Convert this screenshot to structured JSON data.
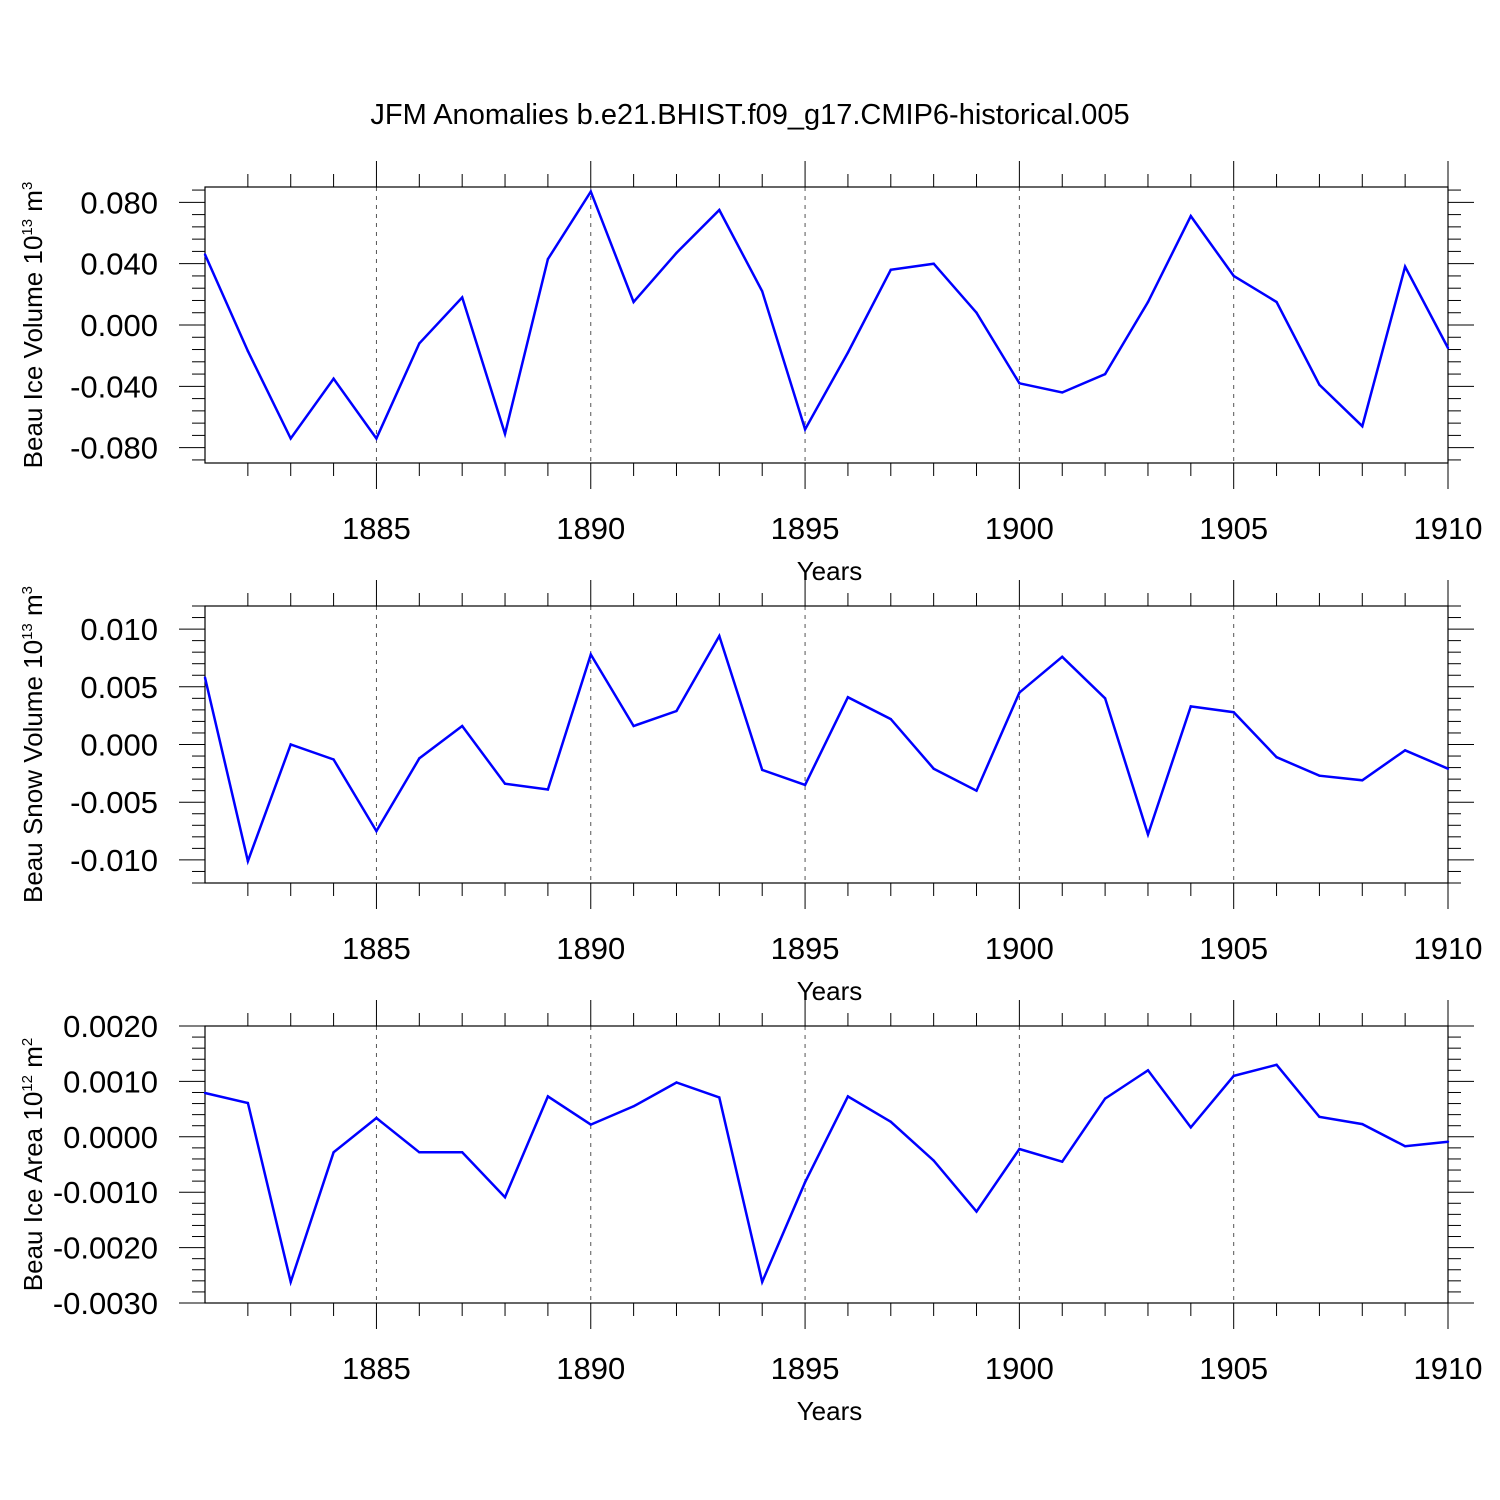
{
  "title": "JFM Anomalies b.e21.BHIST.f09_g17.CMIP6-historical.005",
  "colors": {
    "series": "#0000ff",
    "axes": "#000000",
    "grid": "#555555"
  },
  "chart_data": [
    {
      "type": "line",
      "ylabel": {
        "base": "Beau Ice Volume 10",
        "exponent": "13",
        "unit": " m",
        "unit_exponent": "3"
      },
      "xlabel": "Years",
      "xlim": [
        1881,
        1910
      ],
      "ylim": [
        -0.09,
        0.09
      ],
      "x_ticks": [
        1885,
        1890,
        1895,
        1900,
        1905,
        1910
      ],
      "y_ticks": [
        -0.08,
        -0.04,
        0.0,
        0.04,
        0.08
      ],
      "y_tick_labels": [
        "-0.080",
        "-0.040",
        "0.000",
        "0.040",
        "0.080"
      ],
      "grid": "vertical dashed at major x ticks",
      "x": [
        1881,
        1882,
        1883,
        1884,
        1885,
        1886,
        1887,
        1888,
        1889,
        1890,
        1891,
        1892,
        1893,
        1894,
        1895,
        1896,
        1897,
        1898,
        1899,
        1900,
        1901,
        1902,
        1903,
        1904,
        1905,
        1906,
        1907,
        1908,
        1909,
        1910
      ],
      "series": [
        {
          "name": "Beau Ice Volume",
          "values": [
            0.046,
            -0.017,
            -0.074,
            -0.035,
            -0.074,
            -0.012,
            0.018,
            -0.071,
            0.043,
            0.087,
            0.015,
            0.047,
            0.075,
            0.022,
            -0.068,
            -0.018,
            0.036,
            0.04,
            0.008,
            -0.038,
            -0.044,
            -0.032,
            0.015,
            0.071,
            0.032,
            0.015,
            -0.039,
            -0.066,
            0.038,
            -0.015
          ]
        }
      ]
    },
    {
      "type": "line",
      "ylabel": {
        "base": "Beau Snow Volume 10",
        "exponent": "13",
        "unit": " m",
        "unit_exponent": "3"
      },
      "xlabel": "Years",
      "xlim": [
        1881,
        1910
      ],
      "ylim": [
        -0.012,
        0.012
      ],
      "x_ticks": [
        1885,
        1890,
        1895,
        1900,
        1905,
        1910
      ],
      "y_ticks": [
        -0.01,
        -0.005,
        0.0,
        0.005,
        0.01
      ],
      "y_tick_labels": [
        "-0.010",
        "-0.005",
        "0.000",
        "0.005",
        "0.010"
      ],
      "grid": "vertical dashed at major x ticks",
      "x": [
        1881,
        1882,
        1883,
        1884,
        1885,
        1886,
        1887,
        1888,
        1889,
        1890,
        1891,
        1892,
        1893,
        1894,
        1895,
        1896,
        1897,
        1898,
        1899,
        1900,
        1901,
        1902,
        1903,
        1904,
        1905,
        1906,
        1907,
        1908,
        1909,
        1910
      ],
      "series": [
        {
          "name": "Beau Snow Volume",
          "values": [
            0.0058,
            -0.0101,
            0.0,
            -0.0013,
            -0.0075,
            -0.0012,
            0.0016,
            -0.0034,
            -0.0039,
            0.0078,
            0.0016,
            0.0029,
            0.0094,
            -0.0022,
            -0.0035,
            0.0041,
            0.0022,
            -0.0021,
            -0.004,
            0.0045,
            0.0076,
            0.004,
            -0.0078,
            0.0033,
            0.0028,
            -0.0011,
            -0.0027,
            -0.0031,
            -0.0005,
            -0.0021
          ]
        }
      ]
    },
    {
      "type": "line",
      "ylabel": {
        "base": "Beau Ice Area 10",
        "exponent": "12",
        "unit": " m",
        "unit_exponent": "2"
      },
      "xlabel": "Years",
      "xlim": [
        1881,
        1910
      ],
      "ylim": [
        -0.003,
        0.002
      ],
      "x_ticks": [
        1885,
        1890,
        1895,
        1900,
        1905,
        1910
      ],
      "y_ticks": [
        -0.003,
        -0.002,
        -0.001,
        0.0,
        0.001,
        0.002
      ],
      "y_tick_labels": [
        "-0.0030",
        "-0.0020",
        "-0.0010",
        "0.0000",
        "0.0010",
        "0.0020"
      ],
      "grid": "vertical dashed at major x ticks",
      "x": [
        1881,
        1882,
        1883,
        1884,
        1885,
        1886,
        1887,
        1888,
        1889,
        1890,
        1891,
        1892,
        1893,
        1894,
        1895,
        1896,
        1897,
        1898,
        1899,
        1900,
        1901,
        1902,
        1903,
        1904,
        1905,
        1906,
        1907,
        1908,
        1909,
        1910
      ],
      "series": [
        {
          "name": "Beau Ice Area",
          "values": [
            0.00079,
            0.00061,
            -0.00262,
            -0.00028,
            0.00034,
            -0.00028,
            -0.00028,
            -0.00109,
            0.00073,
            0.00022,
            0.00055,
            0.00098,
            0.00071,
            -0.00262,
            -0.00082,
            0.00073,
            0.00027,
            -0.00043,
            -0.00135,
            -0.00022,
            -0.00045,
            0.00069,
            0.0012,
            0.00017,
            0.0011,
            0.0013,
            0.00036,
            0.00023,
            -0.00017,
            -9e-05
          ]
        }
      ]
    }
  ]
}
